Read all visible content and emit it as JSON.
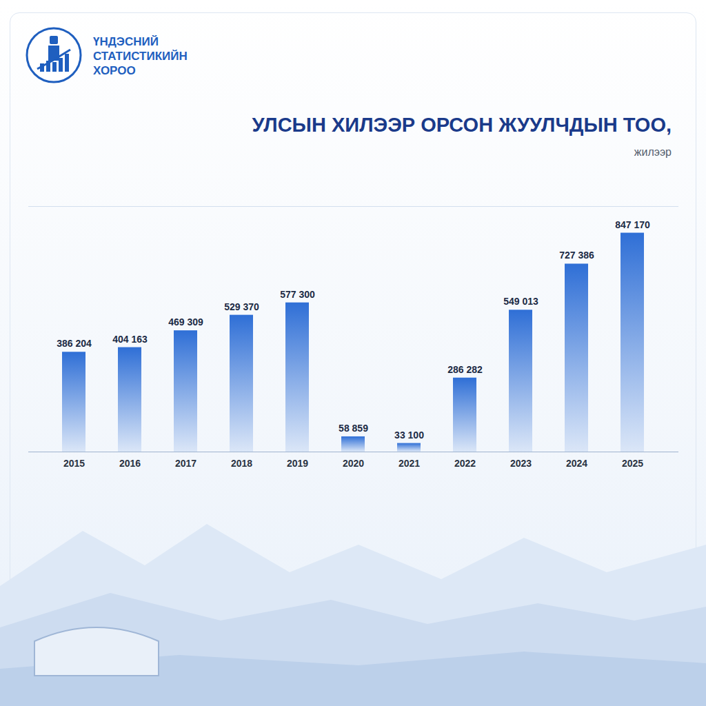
{
  "header": {
    "organization": "ҮНДЭСНИЙ СТАТИСТИКИЙН ХОРОО"
  },
  "chart_data": {
    "type": "bar",
    "title": "УЛСЫН ХИЛЭЭР ОРСОН ЖУУЛЧДЫН ТОО,",
    "subtitle": "жилээр",
    "categories": [
      "2015",
      "2016",
      "2017",
      "2018",
      "2019",
      "2020",
      "2021",
      "2022",
      "2023",
      "2024",
      "2025"
    ],
    "values": [
      386204,
      404163,
      469309,
      529370,
      577300,
      58859,
      33100,
      286282,
      549013,
      727386,
      847170
    ],
    "value_labels": [
      "386 204",
      "404 163",
      "469 309",
      "529 370",
      "577 300",
      "58 859",
      "33 100",
      "286 282",
      "549 013",
      "727 386",
      "847 170"
    ],
    "color": "#2f6fd6",
    "ylim": [
      0,
      950000
    ],
    "yticks": [],
    "grid": false,
    "data_labels": true,
    "tick_labels": "x"
  }
}
